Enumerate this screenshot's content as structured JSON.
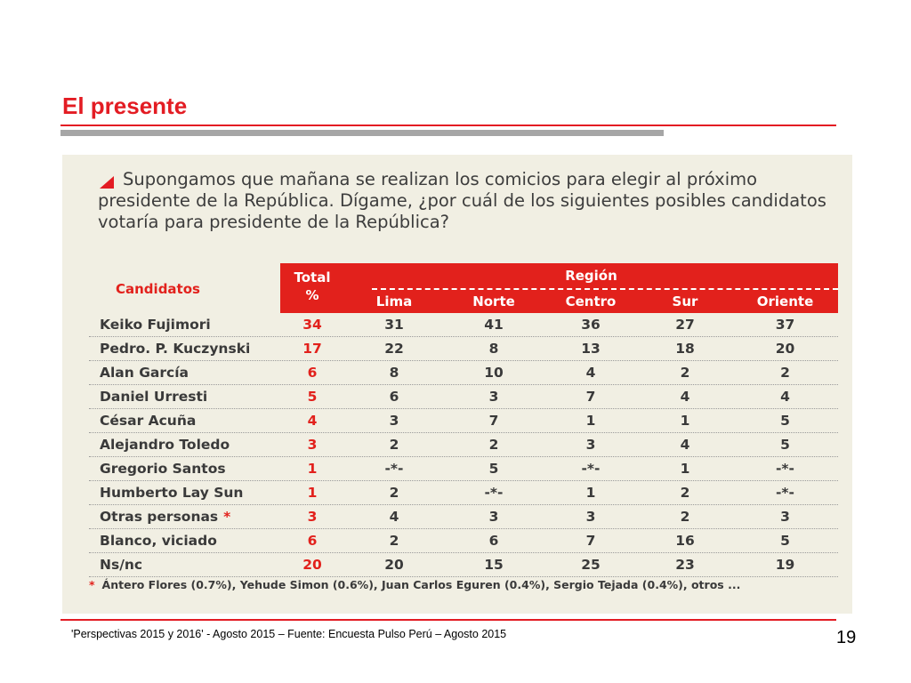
{
  "slide": {
    "title": "El presente",
    "source": "'Perspectivas 2015 y 2016' - Agosto 2015 – Fuente: Encuesta Pulso Perú – Agosto 2015",
    "page_number": "19"
  },
  "survey": {
    "question": "Supongamos que mañana se realizan los comicios para elegir al próximo presidente de la República. Dígame, ¿por cuál de los siguientes posibles candidatos votaría para presidente de la República?",
    "headers": {
      "candidates": "Candidatos",
      "total_line1": "Total",
      "total_line2": "%",
      "region": "Región",
      "regions": [
        "Lima",
        "Norte",
        "Centro",
        "Sur",
        "Oriente"
      ]
    },
    "rows": [
      {
        "name": "Keiko Fujimori",
        "star": "",
        "total": "34",
        "values": [
          "31",
          "41",
          "36",
          "27",
          "37"
        ]
      },
      {
        "name": "Pedro. P.  Kuczynski",
        "star": "",
        "total": "17",
        "values": [
          "22",
          "8",
          "13",
          "18",
          "20"
        ]
      },
      {
        "name": "Alan García",
        "star": "",
        "total": "6",
        "values": [
          "8",
          "10",
          "4",
          "2",
          "2"
        ]
      },
      {
        "name": "Daniel Urresti",
        "star": "",
        "total": "5",
        "values": [
          "6",
          "3",
          "7",
          "4",
          "4"
        ]
      },
      {
        "name": "César Acuña",
        "star": "",
        "total": "4",
        "values": [
          "3",
          "7",
          "1",
          "1",
          "5"
        ]
      },
      {
        "name": "Alejandro Toledo",
        "star": "",
        "total": "3",
        "values": [
          "2",
          "2",
          "3",
          "4",
          "5"
        ]
      },
      {
        "name": "Gregorio Santos",
        "star": "",
        "total": "1",
        "values": [
          "-*-",
          "5",
          "-*-",
          "1",
          "-*-"
        ]
      },
      {
        "name": "Humberto Lay  Sun",
        "star": "",
        "total": "1",
        "values": [
          "2",
          "-*-",
          "1",
          "2",
          "-*-"
        ]
      },
      {
        "name": "Otras personas",
        "star": "*",
        "total": "3",
        "values": [
          "4",
          "3",
          "3",
          "2",
          "3"
        ]
      },
      {
        "name": "Blanco, viciado",
        "star": "",
        "total": "6",
        "values": [
          "2",
          "6",
          "7",
          "16",
          "5"
        ]
      },
      {
        "name": "Ns/nc",
        "star": "",
        "total": "20",
        "values": [
          "20",
          "15",
          "25",
          "23",
          "19"
        ]
      }
    ],
    "footnote_marker": "*",
    "footnote": "Ántero Flores (0.7%),  Yehude Simon (0.6%),  Juan Carlos Eguren (0.4%),  Sergio Tejada  (0.4%),  otros ..."
  },
  "colors": {
    "accent_red": "#e31c23",
    "header_red": "#e2211c",
    "panel_bg": "#f1efe3",
    "rule_gray": "#a6a6a6"
  }
}
